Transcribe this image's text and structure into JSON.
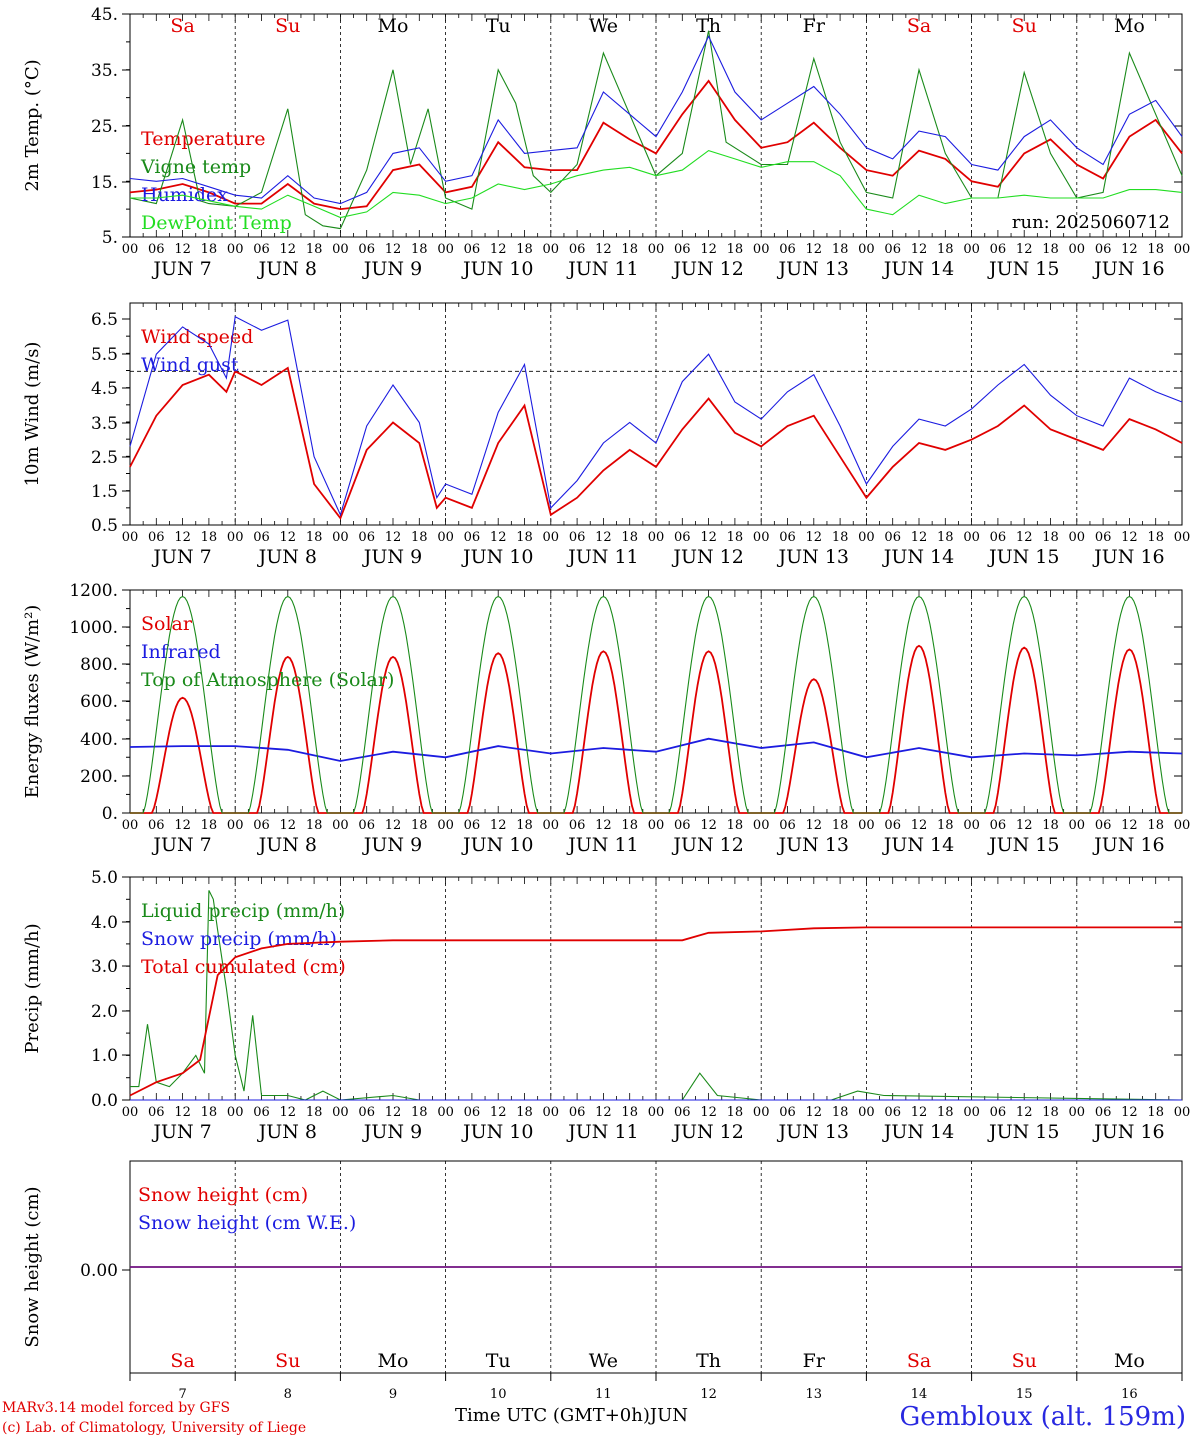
{
  "colors": {
    "red": "#e00000",
    "green": "#1a8a1a",
    "blue": "#1c1ce0",
    "lightgreen": "#22dd22",
    "location_blue": "#2828e0"
  },
  "weekdays": [
    {
      "label": "Sa",
      "color": "#e00000"
    },
    {
      "label": "Su",
      "color": "#e00000"
    },
    {
      "label": "Mo",
      "color": "#000000"
    },
    {
      "label": "Tu",
      "color": "#000000"
    },
    {
      "label": "We",
      "color": "#000000"
    },
    {
      "label": "Th",
      "color": "#000000"
    },
    {
      "label": "Fr",
      "color": "#000000"
    },
    {
      "label": "Sa",
      "color": "#e00000"
    },
    {
      "label": "Su",
      "color": "#e00000"
    },
    {
      "label": "Mo",
      "color": "#000000"
    }
  ],
  "date_labels": [
    "JUN   7",
    "JUN   8",
    "JUN   9",
    "JUN 10",
    "JUN 11",
    "JUN 12",
    "JUN 13",
    "JUN 14",
    "JUN 15",
    "JUN 16"
  ],
  "bottom_days": [
    "7",
    "8",
    "9",
    "10",
    "11",
    "12",
    "13",
    "14",
    "15",
    "16"
  ],
  "hour_ticks": [
    "00",
    "06",
    "12",
    "18"
  ],
  "run_label": "run: 2025060712",
  "footer": {
    "model_line": "MARv3.14 model forced by GFS",
    "copyright_line": "(c) Lab. of Climatology, University of Liege",
    "time_axis": "Time UTC (GMT+0h)",
    "month": "JUN",
    "location": "Gembloux (alt. 159m)"
  },
  "chart_data": [
    {
      "type": "line",
      "ylabel": "2m Temp. (°C)",
      "ylim": [
        5,
        45
      ],
      "yticks": [
        "45.",
        "35.",
        "25.",
        "15.",
        "5."
      ],
      "x_unit": "hours from 2025-06-07 00 UTC",
      "series": [
        {
          "name": "Temperature",
          "color": "#e00000",
          "x": [
            0,
            6,
            12,
            18,
            24,
            30,
            36,
            42,
            48,
            54,
            60,
            66,
            72,
            78,
            84,
            90,
            96,
            102,
            108,
            114,
            120,
            126,
            132,
            138,
            144,
            150,
            156,
            162,
            168,
            174,
            180,
            186,
            192,
            198,
            204,
            210,
            216,
            222,
            228,
            234,
            240
          ],
          "y": [
            13,
            13.5,
            14.5,
            13,
            11,
            11,
            14.5,
            11,
            10,
            10.5,
            17,
            18,
            13,
            14,
            22,
            17.5,
            17,
            17,
            25.5,
            22.5,
            20,
            27,
            33,
            26,
            21,
            22,
            25.5,
            21,
            17,
            16,
            20.5,
            19,
            15,
            14,
            20,
            22.5,
            18,
            15.5,
            23,
            26,
            20
          ]
        },
        {
          "name": "Vigne temp",
          "color": "#1a8a1a",
          "x": [
            0,
            6,
            12,
            16,
            18,
            24,
            30,
            36,
            40,
            44,
            48,
            54,
            60,
            64,
            68,
            72,
            78,
            84,
            88,
            92,
            96,
            102,
            108,
            114,
            120,
            126,
            132,
            136,
            144,
            150,
            156,
            162,
            168,
            174,
            180,
            186,
            192,
            198,
            204,
            210,
            216,
            222,
            228,
            234,
            240
          ],
          "y": [
            12,
            11,
            26,
            11.5,
            11,
            10.5,
            13,
            28,
            9,
            7,
            6.5,
            17,
            35,
            18,
            28,
            12,
            10,
            35,
            29,
            16,
            13,
            18,
            38,
            27,
            16,
            20,
            42,
            22,
            18,
            18,
            37,
            22,
            13,
            12,
            35,
            20,
            12,
            12,
            34.5,
            20,
            12,
            13,
            38,
            27,
            16
          ]
        },
        {
          "name": "Humidex",
          "color": "#1c1ce0",
          "x": [
            0,
            6,
            12,
            18,
            24,
            30,
            36,
            42,
            48,
            54,
            60,
            66,
            72,
            78,
            84,
            90,
            96,
            102,
            108,
            114,
            120,
            126,
            132,
            138,
            144,
            150,
            156,
            162,
            168,
            174,
            180,
            186,
            192,
            198,
            204,
            210,
            216,
            222,
            228,
            234,
            240
          ],
          "y": [
            15.5,
            15,
            15.5,
            14,
            12.5,
            12,
            16,
            12,
            11,
            13,
            20,
            21,
            15,
            16,
            26,
            20,
            20.5,
            21,
            31,
            27,
            23,
            31,
            41,
            31,
            26,
            29,
            32,
            27,
            21,
            19,
            24,
            23,
            18,
            17,
            23,
            26,
            21,
            18,
            27,
            29.5,
            23
          ]
        },
        {
          "name": "DewPoint Temp",
          "color": "#22dd22",
          "x": [
            0,
            6,
            12,
            18,
            24,
            30,
            36,
            42,
            48,
            54,
            60,
            66,
            72,
            78,
            84,
            90,
            96,
            102,
            108,
            114,
            120,
            126,
            132,
            138,
            144,
            150,
            156,
            162,
            168,
            174,
            180,
            186,
            192,
            198,
            204,
            210,
            216,
            222,
            228,
            234,
            240
          ],
          "y": [
            12,
            12,
            12.5,
            11.5,
            10.5,
            10,
            12.5,
            10.5,
            8.5,
            9.5,
            13,
            12.5,
            11,
            12,
            14.5,
            13.5,
            14.5,
            16,
            17,
            17.5,
            16,
            17,
            20.5,
            19,
            17.5,
            18.5,
            18.5,
            16,
            10,
            9,
            12.5,
            11,
            12,
            12,
            12.5,
            12,
            12,
            12,
            13.5,
            13.5,
            13
          ]
        }
      ]
    },
    {
      "type": "line",
      "ylabel": "10m Wind (m/s)",
      "ylim": [
        0.5,
        7
      ],
      "yticks": [
        "6.5",
        "5.5",
        "4.5",
        "3.5",
        "2.5",
        "1.5",
        "0.5"
      ],
      "reference_line": 5,
      "series": [
        {
          "name": "Wind speed",
          "color": "#e00000",
          "x": [
            0,
            6,
            12,
            18,
            22,
            24,
            30,
            36,
            42,
            48,
            54,
            60,
            66,
            70,
            72,
            78,
            84,
            90,
            96,
            102,
            108,
            114,
            120,
            126,
            132,
            138,
            144,
            150,
            156,
            162,
            168,
            174,
            180,
            186,
            192,
            198,
            204,
            210,
            216,
            222,
            228,
            234,
            240
          ],
          "y": [
            2.2,
            3.7,
            4.6,
            4.9,
            4.4,
            5,
            4.6,
            5.1,
            1.7,
            0.7,
            2.7,
            3.5,
            2.9,
            1.0,
            1.3,
            1.0,
            2.9,
            4.0,
            0.8,
            1.3,
            2.1,
            2.7,
            2.2,
            3.3,
            4.2,
            3.2,
            2.8,
            3.4,
            3.7,
            2.5,
            1.3,
            2.2,
            2.9,
            2.7,
            3.0,
            3.4,
            4.0,
            3.3,
            3.0,
            2.7,
            3.6,
            3.3,
            2.9
          ]
        },
        {
          "name": "Wind gust",
          "color": "#1c1ce0",
          "x": [
            0,
            6,
            12,
            18,
            22,
            24,
            30,
            36,
            42,
            48,
            54,
            60,
            66,
            70,
            72,
            78,
            84,
            90,
            96,
            102,
            108,
            114,
            120,
            126,
            132,
            138,
            144,
            150,
            156,
            162,
            168,
            174,
            180,
            186,
            192,
            198,
            204,
            210,
            216,
            222,
            228,
            234,
            240
          ],
          "y": [
            2.8,
            5.5,
            6.3,
            5.8,
            4.8,
            6.6,
            6.2,
            6.5,
            2.5,
            0.8,
            3.4,
            4.6,
            3.5,
            1.3,
            1.7,
            1.4,
            3.8,
            5.2,
            1.0,
            1.8,
            2.9,
            3.5,
            2.9,
            4.7,
            5.5,
            4.1,
            3.6,
            4.4,
            4.9,
            3.4,
            1.7,
            2.8,
            3.6,
            3.4,
            3.9,
            4.6,
            5.2,
            4.3,
            3.7,
            3.4,
            4.8,
            4.4,
            4.1
          ]
        }
      ]
    },
    {
      "type": "line",
      "ylabel": "Energy fluxes (W/m²)",
      "ylim": [
        0,
        1200
      ],
      "yticks": [
        "1200.",
        "1000.",
        "800.",
        "600.",
        "400.",
        "200.",
        "0."
      ],
      "series": [
        {
          "name": "Solar",
          "color": "#e00000",
          "peaks": [
            620,
            840,
            840,
            860,
            870,
            870,
            720,
            900,
            890,
            880
          ]
        },
        {
          "name": "Infrared",
          "color": "#1c1ce0",
          "x": [
            0,
            12,
            24,
            36,
            48,
            60,
            72,
            84,
            96,
            108,
            120,
            132,
            144,
            156,
            168,
            180,
            192,
            204,
            216,
            228,
            240
          ],
          "y": [
            355,
            360,
            360,
            340,
            280,
            330,
            300,
            360,
            320,
            350,
            330,
            400,
            350,
            380,
            300,
            350,
            300,
            320,
            310,
            330,
            320
          ]
        },
        {
          "name": "Top of Atmosphere (Solar)",
          "color": "#1a8a1a",
          "peaks": [
            1165,
            1165,
            1165,
            1165,
            1165,
            1165,
            1165,
            1165,
            1165,
            1165
          ]
        }
      ]
    },
    {
      "type": "line",
      "ylabel": "Precip (mm/h)",
      "ylim": [
        0,
        5
      ],
      "yticks": [
        "5.0",
        "4.0",
        "3.0",
        "2.0",
        "1.0",
        "0.0"
      ],
      "series": [
        {
          "name": "Liquid precip (mm/h)",
          "color": "#1a8a1a",
          "x": [
            0,
            2,
            4,
            6,
            9,
            12,
            15,
            17,
            18,
            19,
            20,
            22,
            24,
            26,
            28,
            30,
            36,
            40,
            44,
            48,
            60,
            66,
            72,
            126,
            130,
            134,
            144,
            160,
            166,
            172,
            240
          ],
          "y": [
            0.3,
            0.3,
            1.7,
            0.4,
            0.3,
            0.6,
            1.0,
            0.6,
            4.7,
            4.5,
            3.8,
            2.5,
            1.0,
            0.2,
            1.9,
            0.1,
            0.1,
            0.0,
            0.2,
            0.0,
            0.1,
            0.0,
            0.0,
            0.0,
            0.6,
            0.1,
            0.0,
            0.0,
            0.2,
            0.1,
            0.0
          ]
        },
        {
          "name": "Snow precip (mm/h)",
          "color": "#1c1ce0",
          "x": [
            0,
            240
          ],
          "y": [
            0,
            0
          ]
        },
        {
          "name": "Total cumulated (cm)",
          "color": "#e00000",
          "x": [
            0,
            6,
            12,
            16,
            20,
            24,
            30,
            36,
            48,
            60,
            72,
            96,
            126,
            132,
            144,
            156,
            168,
            240
          ],
          "y": [
            0.1,
            0.4,
            0.6,
            0.9,
            2.8,
            3.2,
            3.4,
            3.5,
            3.55,
            3.58,
            3.58,
            3.58,
            3.58,
            3.75,
            3.78,
            3.85,
            3.87,
            3.87
          ]
        }
      ]
    },
    {
      "type": "line",
      "ylabel": "Snow height (cm)",
      "yticks": [
        "0.00"
      ],
      "series": [
        {
          "name": "Snow height (cm)",
          "color": "#e00000",
          "x": [
            0,
            240
          ],
          "y": [
            0,
            0
          ]
        },
        {
          "name": "Snow height (cm W.E.)",
          "color": "#1c1ce0",
          "x": [
            0,
            240
          ],
          "y": [
            0,
            0
          ]
        }
      ]
    }
  ]
}
